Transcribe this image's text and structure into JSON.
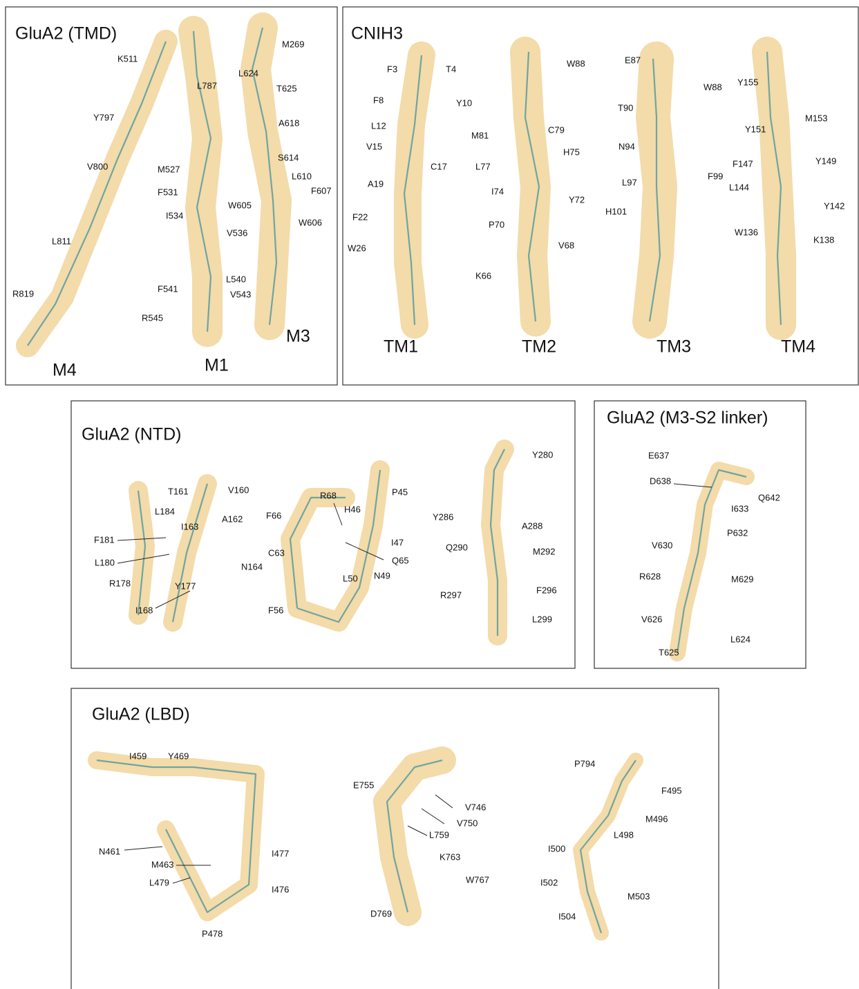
{
  "panels": [
    {
      "title": "GluA2 (TMD)",
      "residues": [
        "M269",
        "K511",
        "L624",
        "T625",
        "L787",
        "Y797",
        "A618",
        "S614",
        "V800",
        "M527",
        "L610",
        "F607",
        "F531",
        "W605",
        "W606",
        "I534",
        "V536",
        "L811",
        "F541",
        "L540",
        "V543",
        "R819",
        "R545"
      ],
      "segments": [
        "M3",
        "M1",
        "M4"
      ]
    },
    {
      "title": "CNIH3",
      "residues": [
        "F3",
        "T4",
        "F8",
        "Y10",
        "L12",
        "V15",
        "C17",
        "A19",
        "F22",
        "W26",
        "W88",
        "M81",
        "C79",
        "H75",
        "L77",
        "I74",
        "Y72",
        "P70",
        "V68",
        "K66",
        "E87",
        "W88",
        "T90",
        "N94",
        "F99",
        "L97",
        "H101",
        "Y155",
        "M153",
        "Y151",
        "F147",
        "Y149",
        "L144",
        "Y142",
        "W136",
        "K138"
      ],
      "segments": [
        "TM1",
        "TM2",
        "TM3",
        "TM4"
      ]
    },
    {
      "title": "GluA2 (NTD)",
      "residues": [
        "T161",
        "V160",
        "L184",
        "A162",
        "I163",
        "F181",
        "L180",
        "Y177",
        "N164",
        "R178",
        "I168",
        "R68",
        "H46",
        "F66",
        "P45",
        "I47",
        "C63",
        "Q65",
        "L50",
        "N49",
        "F56",
        "Y280",
        "Y286",
        "A288",
        "Q290",
        "M292",
        "F296",
        "R297",
        "L299"
      ]
    },
    {
      "title": "GluA2 (M3-S2 linker)",
      "residues": [
        "E637",
        "D638",
        "Q642",
        "I633",
        "P632",
        "V630",
        "R628",
        "M629",
        "V626",
        "L624",
        "T625"
      ]
    },
    {
      "title": "GluA2 (LBD)",
      "residues": [
        "I459",
        "Y469",
        "N461",
        "M463",
        "I477",
        "L479",
        "I476",
        "P478",
        "E755",
        "V746",
        "V750",
        "L759",
        "K763",
        "W767",
        "D769",
        "P794",
        "F495",
        "M496",
        "L498",
        "I500",
        "I502",
        "M503",
        "I504"
      ]
    }
  ]
}
